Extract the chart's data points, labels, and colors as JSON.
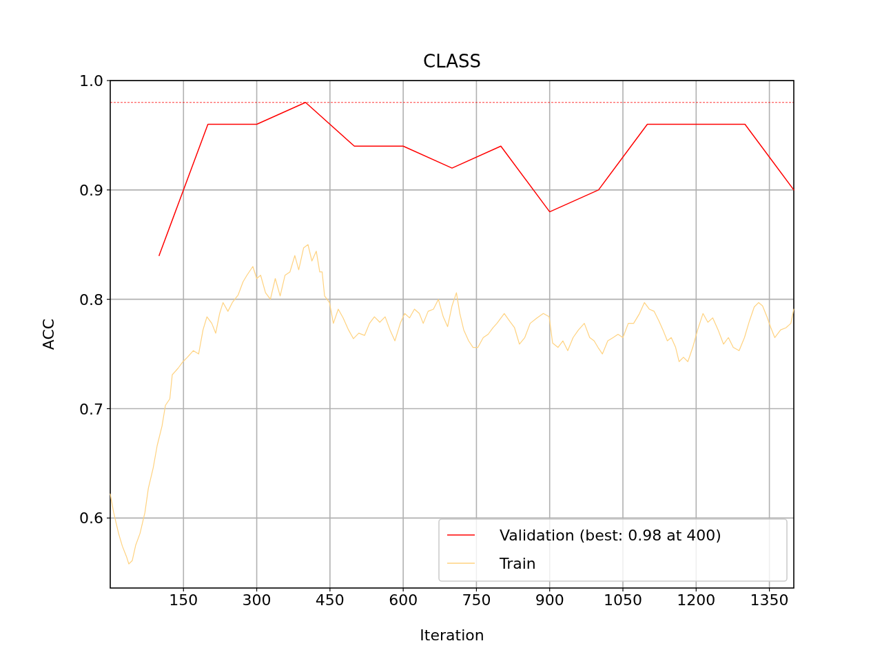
{
  "chart_data": {
    "type": "line",
    "title": "CLASS",
    "xlabel": "Iteration",
    "ylabel": "ACC",
    "xlim": [
      0,
      1400
    ],
    "xticks": [
      150,
      300,
      450,
      600,
      750,
      900,
      1050,
      1200,
      1350
    ],
    "ylim": [
      0.536,
      1.0
    ],
    "yticks": [
      0.6,
      0.7,
      0.8,
      0.9,
      {
        "value": 1.0,
        "label": "1.0"
      }
    ],
    "grid": true,
    "legend": "bottom right",
    "ref_lines": [
      {
        "axis": "y",
        "value": 0.98,
        "color": "#ff0000",
        "line_style": "dashed"
      }
    ],
    "series": [
      {
        "name": "Validation (best: 0.98 at 400)",
        "color": "#ff0000",
        "x": [
          100,
          200,
          300,
          400,
          500,
          600,
          700,
          800,
          900,
          1000,
          1100,
          1200,
          1300,
          1400
        ],
        "values": [
          0.84,
          0.96,
          0.96,
          0.98,
          0.94,
          0.94,
          0.92,
          0.94,
          0.88,
          0.9,
          0.96,
          0.96,
          0.96,
          0.9
        ]
      },
      {
        "name": "Train",
        "color": "#ffd27f",
        "x": [
          0,
          7,
          17,
          25,
          33,
          38,
          45,
          52,
          61,
          71,
          78,
          88,
          96,
          106,
          113,
          122,
          127,
          139,
          149,
          158,
          170,
          181,
          190,
          198,
          208,
          216,
          224,
          231,
          241,
          250,
          262,
          272,
          280,
          292,
          300,
          308,
          318,
          328,
          338,
          348,
          358,
          368,
          378,
          386,
          396,
          405,
          413,
          422,
          429,
          434,
          439,
          449,
          457,
          467,
          477,
          488,
          498,
          509,
          521,
          531,
          541,
          552,
          563,
          573,
          583,
          594,
          603,
          613,
          623,
          633,
          641,
          651,
          662,
          672,
          682,
          691,
          700,
          709,
          716,
          724,
          734,
          743,
          753,
          764,
          774,
          784,
          792,
          807,
          818,
          828,
          838,
          849,
          860,
          874,
          887,
          899,
          906,
          917,
          927,
          937,
          948,
          959,
          971,
          982,
          991,
          999,
          1008,
          1019,
          1030,
          1040,
          1050,
          1061,
          1072,
          1084,
          1094,
          1104,
          1114,
          1124,
          1132,
          1141,
          1149,
          1158,
          1165,
          1174,
          1183,
          1193,
          1203,
          1214,
          1224,
          1234,
          1245,
          1256,
          1266,
          1276,
          1288,
          1299,
          1309,
          1319,
          1328,
          1336,
          1345,
          1353,
          1361,
          1373,
          1384,
          1394,
          1400
        ],
        "values": [
          0.622,
          0.605,
          0.586,
          0.574,
          0.565,
          0.558,
          0.561,
          0.575,
          0.586,
          0.605,
          0.627,
          0.646,
          0.666,
          0.684,
          0.703,
          0.709,
          0.731,
          0.737,
          0.743,
          0.747,
          0.753,
          0.75,
          0.772,
          0.784,
          0.778,
          0.769,
          0.787,
          0.797,
          0.789,
          0.797,
          0.804,
          0.816,
          0.822,
          0.83,
          0.819,
          0.822,
          0.806,
          0.8,
          0.819,
          0.803,
          0.822,
          0.825,
          0.84,
          0.827,
          0.847,
          0.85,
          0.835,
          0.844,
          0.825,
          0.825,
          0.803,
          0.797,
          0.778,
          0.791,
          0.783,
          0.772,
          0.764,
          0.769,
          0.767,
          0.778,
          0.784,
          0.779,
          0.784,
          0.772,
          0.762,
          0.778,
          0.787,
          0.783,
          0.791,
          0.787,
          0.778,
          0.789,
          0.791,
          0.8,
          0.784,
          0.775,
          0.794,
          0.806,
          0.787,
          0.772,
          0.762,
          0.756,
          0.756,
          0.765,
          0.768,
          0.774,
          0.778,
          0.787,
          0.78,
          0.774,
          0.759,
          0.765,
          0.778,
          0.783,
          0.787,
          0.784,
          0.76,
          0.756,
          0.762,
          0.753,
          0.765,
          0.772,
          0.778,
          0.765,
          0.762,
          0.756,
          0.75,
          0.762,
          0.765,
          0.768,
          0.765,
          0.778,
          0.778,
          0.787,
          0.797,
          0.791,
          0.789,
          0.78,
          0.772,
          0.762,
          0.765,
          0.756,
          0.743,
          0.747,
          0.743,
          0.756,
          0.772,
          0.787,
          0.779,
          0.783,
          0.772,
          0.759,
          0.765,
          0.756,
          0.753,
          0.765,
          0.78,
          0.793,
          0.797,
          0.794,
          0.784,
          0.774,
          0.765,
          0.772,
          0.774,
          0.778,
          0.791
        ]
      }
    ]
  }
}
